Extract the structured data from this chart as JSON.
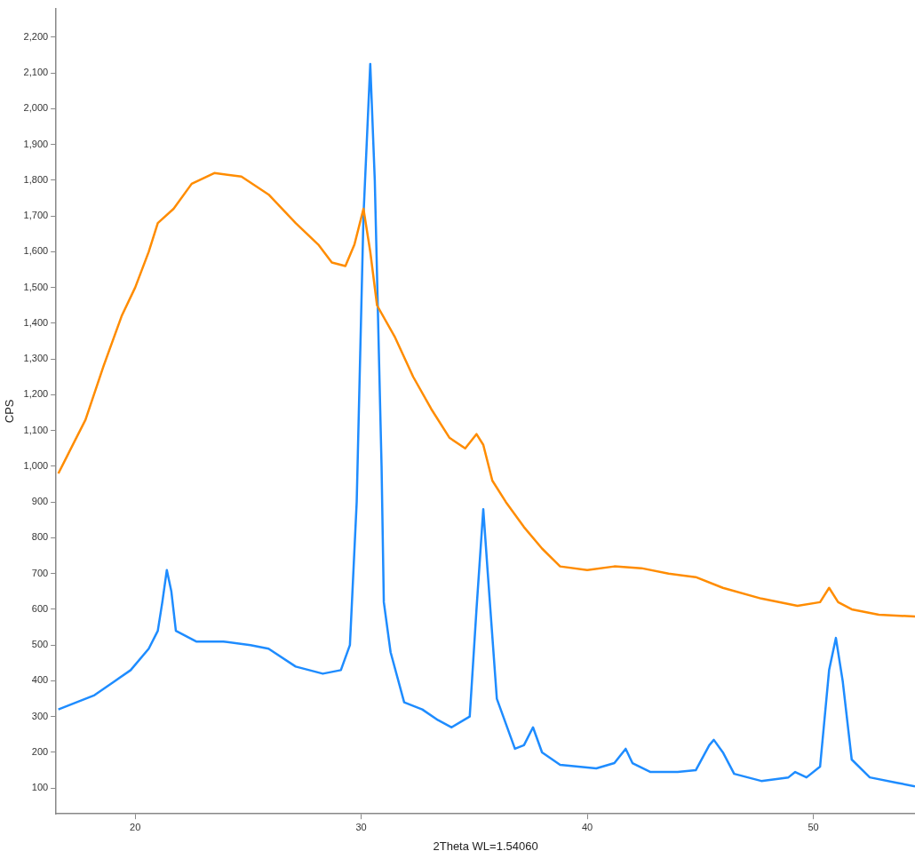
{
  "chart_data": {
    "type": "line",
    "xlabel": "2Theta WL=1.54060",
    "ylabel": "CPS",
    "xlim": [
      16.5,
      54.5
    ],
    "ylim": [
      28,
      2280
    ],
    "xticks": [
      20,
      30,
      40,
      50
    ],
    "yticks": [
      100,
      200,
      300,
      400,
      500,
      600,
      700,
      800,
      900,
      {
        "value": 1000,
        "label": "1,000"
      },
      {
        "value": 1100,
        "label": "1,100"
      },
      {
        "value": 1200,
        "label": "1,200"
      },
      {
        "value": 1300,
        "label": "1,300"
      },
      {
        "value": 1400,
        "label": "1,400"
      },
      {
        "value": 1500,
        "label": "1,500"
      },
      {
        "value": 1600,
        "label": "1,600"
      },
      {
        "value": 1700,
        "label": "1,700"
      },
      {
        "value": 1800,
        "label": "1,800"
      },
      {
        "value": 1900,
        "label": "1,900"
      },
      {
        "value": 2000,
        "label": "2,000"
      },
      {
        "value": 2100,
        "label": "2,100"
      },
      {
        "value": 2200,
        "label": "2,200"
      }
    ],
    "grid": false,
    "legend": false,
    "marker": "none",
    "line_style": "solid",
    "series": [
      {
        "color": "#ff8c00",
        "x": [
          16.6,
          17.0,
          17.8,
          18.6,
          19.4,
          20.0,
          20.6,
          21.0,
          21.7,
          22.5,
          23.5,
          24.7,
          25.9,
          27.1,
          28.1,
          28.7,
          29.3,
          29.7,
          30.1,
          30.4,
          30.7,
          31.5,
          32.3,
          33.1,
          33.9,
          34.6,
          35.1,
          35.4,
          35.8,
          36.4,
          37.2,
          38.0,
          38.8,
          40.0,
          41.2,
          42.4,
          43.6,
          44.8,
          46.0,
          47.7,
          49.3,
          50.3,
          50.7,
          51.1,
          51.7,
          52.9,
          54.5
        ],
        "values": [
          980,
          1030,
          1130,
          1280,
          1420,
          1500,
          1600,
          1680,
          1720,
          1790,
          1820,
          1810,
          1760,
          1680,
          1620,
          1570,
          1560,
          1620,
          1720,
          1600,
          1450,
          1360,
          1250,
          1160,
          1080,
          1050,
          1090,
          1060,
          960,
          900,
          830,
          770,
          720,
          710,
          720,
          715,
          700,
          690,
          660,
          630,
          610,
          620,
          660,
          620,
          600,
          585,
          580
        ]
      },
      {
        "color": "#1e8cff",
        "x": [
          16.6,
          17.4,
          18.2,
          19.0,
          19.8,
          20.6,
          21.0,
          21.2,
          21.4,
          21.6,
          21.8,
          22.7,
          23.9,
          25.1,
          25.9,
          27.1,
          28.3,
          29.1,
          29.5,
          29.8,
          30.1,
          30.4,
          30.6,
          30.9,
          31.0,
          31.3,
          31.9,
          32.7,
          33.4,
          34.0,
          34.8,
          35.1,
          35.4,
          35.6,
          36.0,
          36.8,
          37.2,
          37.6,
          38.0,
          38.8,
          40.4,
          41.2,
          41.7,
          42.0,
          42.8,
          44.0,
          44.8,
          45.4,
          45.6,
          46.0,
          46.5,
          47.7,
          48.9,
          49.2,
          49.7,
          50.3,
          50.7,
          51.0,
          51.3,
          51.7,
          52.5,
          53.7,
          54.5
        ],
        "values": [
          320,
          340,
          360,
          395,
          430,
          490,
          540,
          620,
          710,
          650,
          540,
          510,
          510,
          500,
          490,
          440,
          420,
          430,
          500,
          900,
          1700,
          2125,
          1800,
          1000,
          620,
          480,
          340,
          320,
          290,
          270,
          300,
          600,
          880,
          700,
          350,
          210,
          220,
          270,
          200,
          165,
          155,
          170,
          210,
          170,
          145,
          145,
          150,
          220,
          235,
          200,
          140,
          120,
          130,
          145,
          130,
          160,
          430,
          520,
          400,
          180,
          130,
          115,
          105
        ]
      }
    ]
  }
}
